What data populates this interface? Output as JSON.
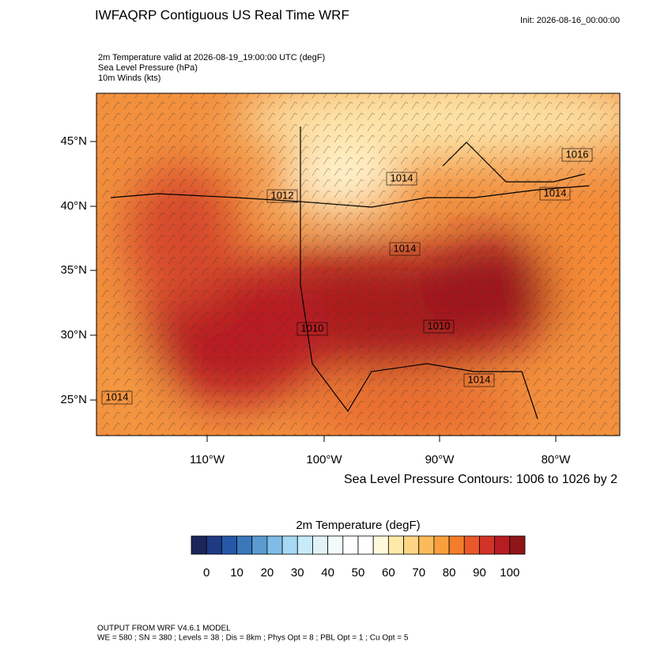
{
  "header": {
    "title": "IWFAQRP Contiguous US Real Time WRF",
    "init": "Init: 2026-08-16_00:00:00"
  },
  "fields": [
    "2m Temperature valid at 2026-08-19_19:00:00 UTC   (degF)",
    "Sea Level Pressure   (hPa)",
    "10m Winds   (kts)"
  ],
  "map": {
    "lat_labels": [
      "45°N",
      "40°N",
      "35°N",
      "30°N",
      "25°N"
    ],
    "lon_labels": [
      "110°W",
      "100°W",
      "90°W",
      "80°W"
    ],
    "pressure_labels": [
      "1014",
      "1014",
      "1010",
      "1010",
      "1014",
      "1014",
      "1014",
      "1016",
      "1012"
    ],
    "contour_note": "Sea Level Pressure Contours: 1006 to 1026 by 2"
  },
  "colorbar": {
    "title": "2m Temperature  (degF)",
    "ticks": [
      0,
      10,
      20,
      30,
      40,
      50,
      60,
      70,
      80,
      90,
      100
    ],
    "colors": [
      "#1b2559",
      "#1e3a84",
      "#2558a8",
      "#3a78bd",
      "#5a9bd1",
      "#7fbde6",
      "#a6d9f3",
      "#c7ebf8",
      "#e1f3f8",
      "#f3fafb",
      "#ffffff",
      "#ffffff",
      "#fff8dc",
      "#fee9a8",
      "#fdd585",
      "#fcbb5a",
      "#f99f3e",
      "#f47d2b",
      "#e8582a",
      "#d33327",
      "#b71c22",
      "#8e1518"
    ]
  },
  "footer": [
    "OUTPUT FROM WRF V4.6.1 MODEL",
    "WE = 580 ; SN = 380 ; Levels = 38 ; Dis = 8km ; Phys Opt = 8 ; PBL Opt = 1 ; Cu Opt = 5"
  ]
}
